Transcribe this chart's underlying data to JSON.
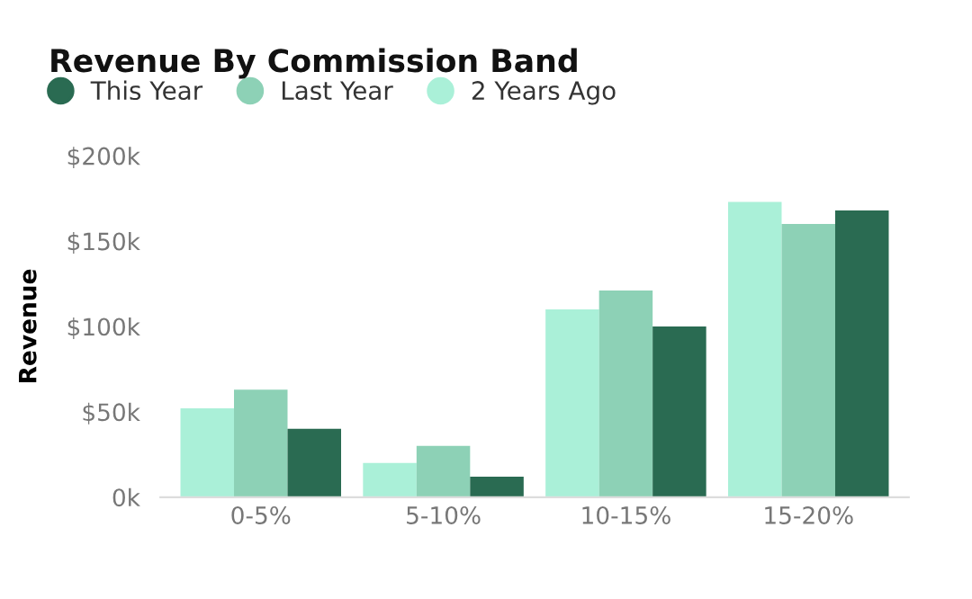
{
  "chart_data": {
    "type": "bar",
    "title": "Revenue By Commission Band",
    "ylabel": "Revenue",
    "categories": [
      "0-5%",
      "5-10%",
      "10-15%",
      "15-20%"
    ],
    "series": [
      {
        "name": "2 Years Ago",
        "color": "#aaf0d8",
        "values": [
          52,
          20,
          110,
          173
        ]
      },
      {
        "name": "Last Year",
        "color": "#8dd1b6",
        "values": [
          63,
          30,
          121,
          160
        ]
      },
      {
        "name": "This Year",
        "color": "#2a6b52",
        "values": [
          40,
          12,
          100,
          168
        ]
      }
    ],
    "ylim": [
      0,
      200
    ],
    "yticks": [
      {
        "value": 0,
        "label": "0k"
      },
      {
        "value": 50,
        "label": "$50k"
      },
      {
        "value": 100,
        "label": "$100k"
      },
      {
        "value": 150,
        "label": "$150k"
      },
      {
        "value": 200,
        "label": "$200k"
      }
    ],
    "grid": false,
    "legend": "top left"
  }
}
